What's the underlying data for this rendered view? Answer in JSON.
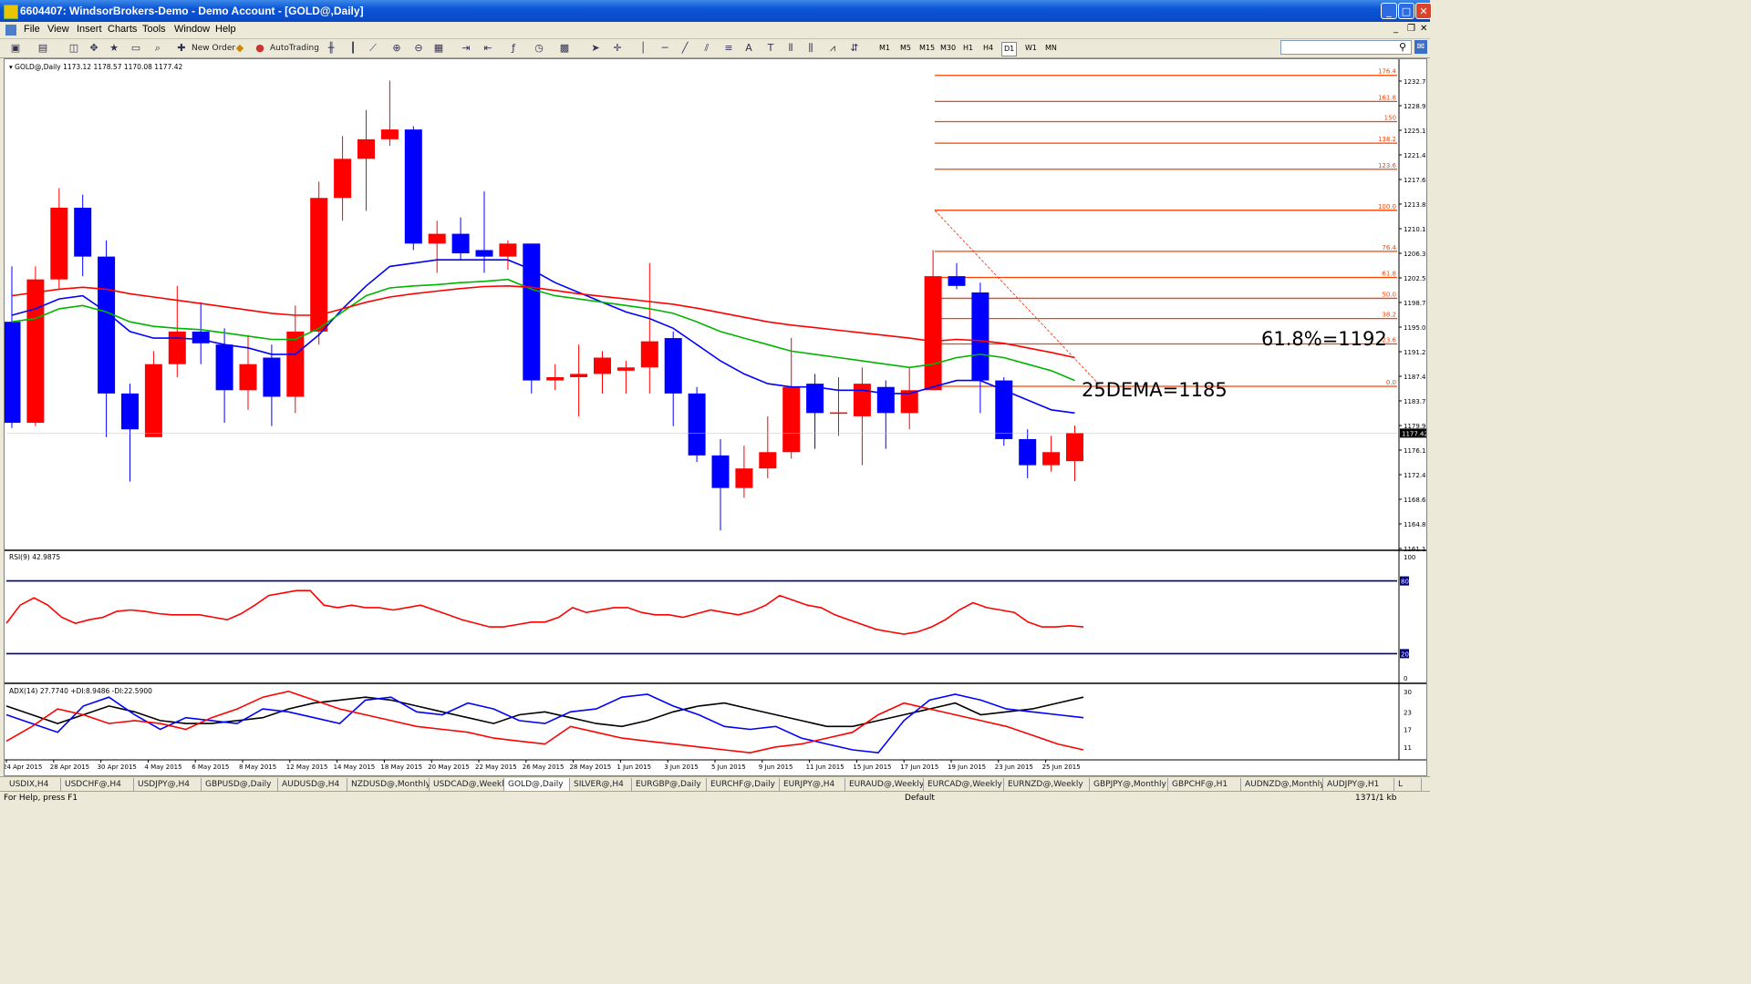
{
  "window": {
    "title": "6604407: WindsorBrokers-Demo - Demo Account - [GOLD@,Daily]"
  },
  "menu": {
    "items": [
      "File",
      "View",
      "Insert",
      "Charts",
      "Tools",
      "Window",
      "Help"
    ]
  },
  "toolbar": {
    "new_order": "New Order",
    "auto_trading": "AutoTrading",
    "timeframes": [
      "M1",
      "M5",
      "M15",
      "M30",
      "H1",
      "H4",
      "D1",
      "W1",
      "MN"
    ]
  },
  "chart_data": [
    {
      "type": "candlestick",
      "symbol_label": "GOLD@,Daily",
      "ohlc_label": "1173.12 1178.57 1170.08 1177.42",
      "current_price_label": "1177.42",
      "y_ticks": [
        "1232.70",
        "1228.90",
        "1225.10",
        "1221.40",
        "1217.60",
        "1213.80",
        "1210.10",
        "1206.30",
        "1202.50",
        "1198.70",
        "1195.00",
        "1191.20",
        "1187.40",
        "1183.70",
        "1179.90",
        "1176.10",
        "1172.40",
        "1168.60",
        "1164.80",
        "1161.10"
      ],
      "x_ticks": [
        "24 Apr 2015",
        "28 Apr 2015",
        "30 Apr 2015",
        "4 May 2015",
        "6 May 2015",
        "8 May 2015",
        "12 May 2015",
        "14 May 2015",
        "18 May 2015",
        "20 May 2015",
        "22 May 2015",
        "26 May 2015",
        "28 May 2015",
        "1 Jun 2015",
        "3 Jun 2015",
        "5 Jun 2015",
        "9 Jun 2015",
        "11 Jun 2015",
        "15 Jun 2015",
        "17 Jun 2015",
        "19 Jun 2015",
        "23 Jun 2015",
        "25 Jun 2015"
      ],
      "candles": [
        {
          "o": 1194.5,
          "h": 1203.0,
          "l": 1178.2,
          "c": 1179.0
        },
        {
          "o": 1179.0,
          "h": 1203.0,
          "l": 1178.5,
          "c": 1201.0
        },
        {
          "o": 1201.0,
          "h": 1215.0,
          "l": 1199.5,
          "c": 1212.0
        },
        {
          "o": 1212.0,
          "h": 1214.0,
          "l": 1201.5,
          "c": 1204.5
        },
        {
          "o": 1204.5,
          "h": 1207.0,
          "l": 1176.8,
          "c": 1183.5
        },
        {
          "o": 1183.5,
          "h": 1185.0,
          "l": 1170.0,
          "c": 1178.0
        },
        {
          "o": 1176.8,
          "h": 1190.0,
          "l": 1176.8,
          "c": 1188.0
        },
        {
          "o": 1188.0,
          "h": 1200.0,
          "l": 1186.0,
          "c": 1193.0
        },
        {
          "o": 1193.0,
          "h": 1197.5,
          "l": 1188.0,
          "c": 1191.2
        },
        {
          "o": 1191.0,
          "h": 1193.5,
          "l": 1179.0,
          "c": 1184.0
        },
        {
          "o": 1184.0,
          "h": 1192.5,
          "l": 1181.0,
          "c": 1188.0
        },
        {
          "o": 1189.0,
          "h": 1191.0,
          "l": 1178.5,
          "c": 1183.0
        },
        {
          "o": 1183.0,
          "h": 1197.0,
          "l": 1180.5,
          "c": 1193.0
        },
        {
          "o": 1193.0,
          "h": 1216.0,
          "l": 1191.0,
          "c": 1213.5
        },
        {
          "o": 1213.5,
          "h": 1223.0,
          "l": 1210.0,
          "c": 1219.5
        },
        {
          "o": 1219.5,
          "h": 1227.0,
          "l": 1211.5,
          "c": 1222.5
        },
        {
          "o": 1222.5,
          "h": 1231.5,
          "l": 1221.5,
          "c": 1224.0
        },
        {
          "o": 1224.0,
          "h": 1224.5,
          "l": 1205.5,
          "c": 1206.5
        },
        {
          "o": 1206.5,
          "h": 1210.0,
          "l": 1202.0,
          "c": 1208.0
        },
        {
          "o": 1208.0,
          "h": 1210.5,
          "l": 1204.0,
          "c": 1205.0
        },
        {
          "o": 1205.5,
          "h": 1214.5,
          "l": 1202.0,
          "c": 1204.5
        },
        {
          "o": 1204.5,
          "h": 1207.0,
          "l": 1202.5,
          "c": 1206.5
        },
        {
          "o": 1206.5,
          "h": 1206.5,
          "l": 1183.5,
          "c": 1185.5
        },
        {
          "o": 1185.5,
          "h": 1188.0,
          "l": 1184.0,
          "c": 1186.0
        },
        {
          "o": 1186.0,
          "h": 1191.0,
          "l": 1180.0,
          "c": 1186.5
        },
        {
          "o": 1186.5,
          "h": 1190.0,
          "l": 1183.5,
          "c": 1189.0
        },
        {
          "o": 1187.0,
          "h": 1188.5,
          "l": 1183.5,
          "c": 1187.5
        },
        {
          "o": 1187.5,
          "h": 1203.5,
          "l": 1183.5,
          "c": 1191.5
        },
        {
          "o": 1192.0,
          "h": 1193.0,
          "l": 1178.5,
          "c": 1183.5
        },
        {
          "o": 1183.5,
          "h": 1184.5,
          "l": 1173.0,
          "c": 1174.0
        },
        {
          "o": 1174.0,
          "h": 1176.5,
          "l": 1162.5,
          "c": 1169.0
        },
        {
          "o": 1169.0,
          "h": 1175.5,
          "l": 1167.5,
          "c": 1172.0
        },
        {
          "o": 1172.0,
          "h": 1180.0,
          "l": 1170.5,
          "c": 1174.5
        },
        {
          "o": 1174.5,
          "h": 1192.0,
          "l": 1173.5,
          "c": 1184.5
        },
        {
          "o": 1185.0,
          "h": 1186.5,
          "l": 1175.0,
          "c": 1180.5
        },
        {
          "o": 1180.5,
          "h": 1186.0,
          "l": 1177.0,
          "c": 1180.6
        },
        {
          "o": 1180.0,
          "h": 1187.5,
          "l": 1172.5,
          "c": 1185.0
        },
        {
          "o": 1184.5,
          "h": 1185.5,
          "l": 1175.0,
          "c": 1180.5
        },
        {
          "o": 1180.5,
          "h": 1187.5,
          "l": 1178.0,
          "c": 1184.0
        },
        {
          "o": 1184.0,
          "h": 1205.5,
          "l": 1184.0,
          "c": 1201.5
        },
        {
          "o": 1201.5,
          "h": 1203.5,
          "l": 1199.5,
          "c": 1200.0
        },
        {
          "o": 1199.0,
          "h": 1200.5,
          "l": 1180.5,
          "c": 1185.5
        },
        {
          "o": 1185.5,
          "h": 1186.0,
          "l": 1175.5,
          "c": 1176.5
        },
        {
          "o": 1176.5,
          "h": 1178.0,
          "l": 1170.5,
          "c": 1172.5
        },
        {
          "o": 1172.5,
          "h": 1177.0,
          "l": 1171.5,
          "c": 1174.5
        },
        {
          "o": 1173.12,
          "h": 1178.57,
          "l": 1170.08,
          "c": 1177.42
        }
      ],
      "moving_averages": [
        {
          "color": "#0000ff",
          "values": [
            1195.5,
            1196.5,
            1198.0,
            1198.5,
            1196.0,
            1193.0,
            1192.0,
            1192.0,
            1191.8,
            1191.0,
            1190.5,
            1189.5,
            1189.5,
            1192.5,
            1196.5,
            1200.0,
            1203.0,
            1203.5,
            1204.0,
            1204.0,
            1204.0,
            1204.0,
            1202.5,
            1200.5,
            1199.0,
            1197.5,
            1196.0,
            1195.0,
            1193.5,
            1191.0,
            1188.5,
            1186.5,
            1185.0,
            1184.5,
            1184.5,
            1184.0,
            1184.0,
            1183.5,
            1183.5,
            1184.5,
            1185.5,
            1185.5,
            1184.0,
            1182.5,
            1181.0,
            1180.5
          ]
        },
        {
          "color": "#00b400",
          "values": [
            1194.5,
            1195.0,
            1196.5,
            1197.0,
            1196.0,
            1194.5,
            1193.8,
            1193.5,
            1193.3,
            1192.8,
            1192.3,
            1191.8,
            1191.8,
            1193.5,
            1196.0,
            1198.5,
            1199.7,
            1200.0,
            1200.2,
            1200.5,
            1200.7,
            1201.0,
            1199.5,
            1198.5,
            1198.0,
            1197.5,
            1197.0,
            1196.5,
            1195.8,
            1194.5,
            1193.0,
            1192.0,
            1191.0,
            1190.0,
            1189.5,
            1189.0,
            1188.5,
            1188.0,
            1187.5,
            1188.0,
            1189.0,
            1189.5,
            1189.0,
            1188.0,
            1187.0,
            1185.5
          ]
        },
        {
          "color": "#ff0000",
          "values": [
            1198.5,
            1199.0,
            1199.5,
            1199.8,
            1199.5,
            1198.8,
            1198.3,
            1197.8,
            1197.3,
            1196.8,
            1196.3,
            1195.8,
            1195.5,
            1195.5,
            1196.5,
            1197.5,
            1198.3,
            1198.8,
            1199.2,
            1199.6,
            1199.9,
            1200.0,
            1199.8,
            1199.3,
            1198.8,
            1198.4,
            1198.0,
            1197.6,
            1197.2,
            1196.6,
            1195.9,
            1195.2,
            1194.5,
            1194.0,
            1193.6,
            1193.2,
            1192.8,
            1192.4,
            1192.0,
            1191.5,
            1191.8,
            1191.6,
            1191.2,
            1190.5,
            1189.8,
            1189.0
          ]
        }
      ],
      "fibonacci": {
        "levels": [
          {
            "label": "176.4",
            "price": 1232.3
          },
          {
            "label": "161.8",
            "price": 1228.3
          },
          {
            "label": "150",
            "price": 1225.2
          },
          {
            "label": "138.2",
            "price": 1221.9
          },
          {
            "label": "123.6",
            "price": 1217.9
          },
          {
            "label": "100.0",
            "price": 1211.6
          },
          {
            "label": "76.4",
            "price": 1205.3
          },
          {
            "label": "61.8",
            "price": 1201.3
          },
          {
            "label": "50.0",
            "price": 1198.1
          },
          {
            "label": "38.2",
            "price": 1195.0
          },
          {
            "label": "23.6",
            "price": 1191.1
          },
          {
            "label": "0.0",
            "price": 1184.6
          }
        ]
      },
      "annotations": [
        "61.8%=1192",
        "25DEMA=1185"
      ]
    },
    {
      "type": "line",
      "label": "RSI(9) 42.9875",
      "ylim": [
        0,
        100
      ],
      "y_ticks": [
        "100",
        "80",
        "20",
        "0"
      ],
      "levels": [
        80,
        20
      ],
      "values": [
        45,
        60,
        66,
        60,
        50,
        45,
        48,
        50,
        55,
        56,
        55,
        53,
        52,
        52,
        52,
        50,
        48,
        53,
        60,
        68,
        70,
        72,
        72,
        60,
        58,
        60,
        58,
        58,
        56,
        58,
        60,
        56,
        52,
        48,
        45,
        42,
        42,
        44,
        46,
        46,
        50,
        58,
        54,
        56,
        58,
        58,
        54,
        52,
        52,
        50,
        53,
        56,
        54,
        52,
        55,
        60,
        68,
        64,
        60,
        58,
        52,
        48,
        44,
        40,
        38,
        36,
        38,
        42,
        48,
        56,
        62,
        58,
        56,
        54,
        46,
        42,
        42,
        43,
        42
      ]
    },
    {
      "type": "line",
      "label": "ADX(14) 27.7740 +DI:8.9486 -DI:22.5900",
      "y_ticks": [
        "30",
        "23",
        "17",
        "11"
      ],
      "series": [
        {
          "color": "#000000",
          "values": [
            25,
            22,
            19,
            22,
            25,
            23,
            20,
            19,
            19,
            20,
            21,
            24,
            26,
            27,
            28,
            27,
            25,
            23,
            21,
            19,
            22,
            23,
            21,
            19,
            18,
            20,
            23,
            25,
            26,
            24,
            22,
            20,
            18,
            18,
            20,
            22,
            24,
            26,
            22,
            23,
            24,
            26,
            28
          ]
        },
        {
          "color": "#0000ff",
          "values": [
            22,
            19,
            16,
            25,
            28,
            22,
            17,
            21,
            20,
            19,
            24,
            23,
            21,
            19,
            27,
            28,
            23,
            22,
            26,
            24,
            20,
            19,
            23,
            24,
            28,
            29,
            25,
            22,
            18,
            17,
            18,
            14,
            12,
            10,
            9,
            20,
            27,
            29,
            27,
            24,
            23,
            22,
            21
          ]
        },
        {
          "color": "#ff0000",
          "values": [
            13,
            18,
            24,
            22,
            19,
            20,
            19,
            17,
            21,
            24,
            28,
            30,
            27,
            24,
            22,
            20,
            18,
            17,
            16,
            14,
            13,
            12,
            18,
            16,
            14,
            13,
            12,
            11,
            10,
            9,
            11,
            12,
            14,
            16,
            22,
            26,
            24,
            22,
            20,
            18,
            15,
            12,
            10
          ]
        }
      ]
    }
  ],
  "tabs": [
    "USDIX,H4",
    "USDCHF@,H4",
    "USDJPY@,H4",
    "GBPUSD@,Daily",
    "AUDUSD@,H4",
    "NZDUSD@,Monthly",
    "USDCAD@,Weekly",
    "GOLD@,Daily",
    "SILVER@,H4",
    "EURGBP@,Daily",
    "EURCHF@,Daily",
    "EURJPY@,H4",
    "EURAUD@,Weekly",
    "EURCAD@,Weekly",
    "EURNZD@,Weekly",
    "GBPJPY@,Monthly",
    "GBPCHF@,H1",
    "AUDNZD@,Monthly",
    "AUDJPY@,H1",
    "L"
  ],
  "status": {
    "help": "For Help, press F1",
    "profile": "Default",
    "traffic": "1371/1 kb"
  }
}
